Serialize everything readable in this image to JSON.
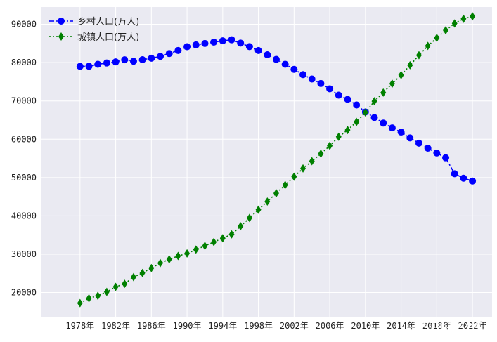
{
  "chart_data": {
    "type": "line",
    "title": "",
    "xlabel": "",
    "ylabel": "",
    "x": [
      1978,
      1979,
      1980,
      1981,
      1982,
      1983,
      1984,
      1985,
      1986,
      1987,
      1988,
      1989,
      1990,
      1991,
      1992,
      1993,
      1994,
      1995,
      1996,
      1997,
      1998,
      1999,
      2000,
      2001,
      2002,
      2003,
      2004,
      2005,
      2006,
      2007,
      2008,
      2009,
      2010,
      2011,
      2012,
      2013,
      2014,
      2015,
      2016,
      2017,
      2018,
      2019,
      2020,
      2021,
      2022
    ],
    "x_tick_values": [
      1978,
      1982,
      1986,
      1990,
      1994,
      1998,
      2002,
      2006,
      2010,
      2014,
      2018,
      2022
    ],
    "x_tick_labels": [
      "1978年",
      "1982年",
      "1986年",
      "1990年",
      "1994年",
      "1998年",
      "2002年",
      "2006年",
      "2010年",
      "2014年",
      "2018年",
      "2022年"
    ],
    "xlim": [
      1973.6,
      2024.2
    ],
    "ylim": [
      13500,
      94500
    ],
    "y_ticks": [
      20000,
      30000,
      40000,
      50000,
      60000,
      70000,
      80000,
      90000
    ],
    "y_tick_labels": [
      "20000",
      "30000",
      "40000",
      "50000",
      "60000",
      "70000",
      "80000",
      "90000"
    ],
    "grid": true,
    "background": "#EAEAF2",
    "legend_position": "top-left",
    "series": [
      {
        "name": "乡村人口(万人)",
        "color": "#0000FF",
        "marker": "circle",
        "linestyle": "dash-dot",
        "values": [
          79014,
          79047,
          79565,
          79901,
          80174,
          80734,
          80340,
          80757,
          81141,
          81626,
          82365,
          83164,
          84138,
          84620,
          84996,
          85344,
          85681,
          85947,
          85085,
          84177,
          83153,
          82038,
          80837,
          79563,
          78241,
          76851,
          75705,
          74544,
          73160,
          71496,
          70399,
          68938,
          67113,
          65656,
          64222,
          62961,
          61866,
          60346,
          58973,
          57661,
          56401,
          55162,
          50992,
          49835,
          49104
        ]
      },
      {
        "name": "城镇人口(万人)",
        "color": "#008000",
        "marker": "diamond",
        "linestyle": "dotted",
        "values": [
          17245,
          18495,
          19140,
          20171,
          21480,
          22274,
          24017,
          25094,
          26366,
          27674,
          28661,
          29540,
          30195,
          31203,
          32175,
          33173,
          34169,
          35174,
          37304,
          39449,
          41608,
          43748,
          45906,
          48064,
          50212,
          52376,
          54283,
          56212,
          58288,
          60633,
          62403,
          64512,
          66978,
          69927,
          72175,
          74502,
          76738,
          79302,
          81924,
          84343,
          86433,
          88426,
          90220,
          91425,
          92071
        ]
      }
    ],
    "watermark": "@稀土掘金技术社区"
  }
}
